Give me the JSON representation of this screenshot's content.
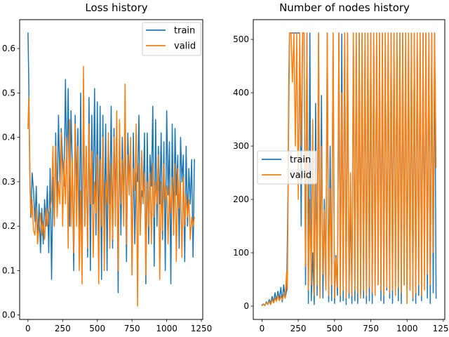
{
  "chart_data": [
    {
      "type": "line",
      "title": "Loss history",
      "xlabel": "",
      "ylabel": "",
      "xlim": [
        -60,
        1260
      ],
      "ylim": [
        -0.01,
        0.665
      ],
      "xticks": [
        0,
        250,
        500,
        750,
        1000,
        1250
      ],
      "yticks": [
        0.0,
        0.1,
        0.2,
        0.3,
        0.4,
        0.5,
        0.6
      ],
      "grid": false,
      "legend_position": "upper right",
      "series": [
        {
          "name": "train",
          "color": "#1f77b4",
          "x": [
            0,
            5,
            10,
            15,
            20,
            25,
            30,
            40,
            50,
            60,
            70,
            80,
            90,
            100,
            110,
            120,
            130,
            140,
            150,
            160,
            170,
            180,
            190,
            200,
            210,
            220,
            230,
            240,
            250,
            260,
            270,
            280,
            290,
            300,
            310,
            320,
            330,
            340,
            350,
            360,
            370,
            380,
            390,
            400,
            410,
            420,
            430,
            440,
            450,
            460,
            470,
            480,
            490,
            500,
            510,
            520,
            530,
            540,
            550,
            560,
            570,
            580,
            590,
            600,
            610,
            620,
            630,
            640,
            650,
            660,
            670,
            680,
            690,
            700,
            710,
            720,
            730,
            740,
            750,
            760,
            770,
            780,
            790,
            800,
            810,
            820,
            830,
            840,
            850,
            860,
            870,
            880,
            890,
            900,
            910,
            920,
            930,
            940,
            950,
            960,
            970,
            980,
            990,
            1000,
            1010,
            1020,
            1030,
            1040,
            1050,
            1060,
            1070,
            1080,
            1090,
            1100,
            1110,
            1120,
            1130,
            1140,
            1150,
            1160,
            1170,
            1180,
            1190,
            1200
          ],
          "y": [
            0.635,
            0.54,
            0.42,
            0.3,
            0.22,
            0.26,
            0.32,
            0.28,
            0.21,
            0.29,
            0.16,
            0.25,
            0.14,
            0.24,
            0.16,
            0.26,
            0.2,
            0.29,
            0.14,
            0.33,
            0.08,
            0.31,
            0.2,
            0.41,
            0.25,
            0.45,
            0.3,
            0.42,
            0.35,
            0.29,
            0.53,
            0.32,
            0.51,
            0.2,
            0.46,
            0.33,
            0.1,
            0.45,
            0.28,
            0.42,
            0.17,
            0.5,
            0.12,
            0.47,
            0.2,
            0.38,
            0.13,
            0.49,
            0.1,
            0.45,
            0.25,
            0.51,
            0.18,
            0.48,
            0.14,
            0.47,
            0.08,
            0.45,
            0.18,
            0.43,
            0.1,
            0.38,
            0.25,
            0.47,
            0.15,
            0.42,
            0.26,
            0.42,
            0.05,
            0.43,
            0.18,
            0.4,
            0.25,
            0.42,
            0.12,
            0.41,
            0.3,
            0.38,
            0.09,
            0.41,
            0.16,
            0.32,
            0.3,
            0.45,
            0.2,
            0.28,
            0.26,
            0.41,
            0.07,
            0.41,
            0.16,
            0.36,
            0.29,
            0.47,
            0.11,
            0.44,
            0.2,
            0.38,
            0.25,
            0.41,
            0.17,
            0.39,
            0.1,
            0.46,
            0.27,
            0.39,
            0.07,
            0.43,
            0.18,
            0.42,
            0.27,
            0.36,
            0.15,
            0.4,
            0.3,
            0.36,
            0.12,
            0.38,
            0.2,
            0.33,
            0.25,
            0.35,
            0.13,
            0.35
          ]
        },
        {
          "name": "valid",
          "color": "#ff7f0e",
          "x": [
            0,
            5,
            10,
            15,
            20,
            25,
            30,
            40,
            50,
            60,
            70,
            80,
            90,
            100,
            110,
            120,
            130,
            140,
            150,
            160,
            170,
            180,
            190,
            200,
            210,
            220,
            230,
            240,
            250,
            260,
            270,
            280,
            290,
            300,
            310,
            320,
            330,
            340,
            350,
            360,
            370,
            380,
            390,
            400,
            410,
            420,
            430,
            440,
            450,
            460,
            470,
            480,
            490,
            500,
            510,
            520,
            530,
            540,
            550,
            560,
            570,
            580,
            590,
            600,
            610,
            620,
            630,
            640,
            650,
            660,
            670,
            680,
            690,
            700,
            710,
            720,
            730,
            740,
            750,
            760,
            770,
            780,
            790,
            800,
            810,
            820,
            830,
            840,
            850,
            860,
            870,
            880,
            890,
            900,
            910,
            920,
            930,
            940,
            950,
            960,
            970,
            980,
            990,
            1000,
            1010,
            1020,
            1030,
            1040,
            1050,
            1060,
            1070,
            1080,
            1090,
            1100,
            1110,
            1120,
            1130,
            1140,
            1150,
            1160,
            1170,
            1180,
            1190,
            1200
          ],
          "y": [
            0.42,
            0.49,
            0.4,
            0.28,
            0.24,
            0.22,
            0.26,
            0.19,
            0.18,
            0.24,
            0.16,
            0.2,
            0.23,
            0.18,
            0.21,
            0.17,
            0.24,
            0.2,
            0.23,
            0.24,
            0.26,
            0.38,
            0.2,
            0.38,
            0.22,
            0.3,
            0.25,
            0.41,
            0.2,
            0.35,
            0.25,
            0.4,
            0.15,
            0.44,
            0.2,
            0.35,
            0.14,
            0.43,
            0.2,
            0.38,
            0.1,
            0.28,
            0.07,
            0.56,
            0.2,
            0.38,
            0.15,
            0.43,
            0.25,
            0.37,
            0.13,
            0.3,
            0.23,
            0.36,
            0.07,
            0.35,
            0.2,
            0.4,
            0.1,
            0.3,
            0.25,
            0.41,
            0.15,
            0.34,
            0.17,
            0.4,
            0.2,
            0.46,
            0.1,
            0.44,
            0.25,
            0.35,
            0.2,
            0.52,
            0.16,
            0.36,
            0.27,
            0.4,
            0.09,
            0.33,
            0.28,
            0.43,
            0.02,
            0.34,
            0.18,
            0.37,
            0.25,
            0.32,
            0.09,
            0.3,
            0.2,
            0.32,
            0.16,
            0.34,
            0.22,
            0.3,
            0.25,
            0.36,
            0.08,
            0.3,
            0.19,
            0.34,
            0.26,
            0.29,
            0.16,
            0.29,
            0.23,
            0.31,
            0.18,
            0.34,
            0.12,
            0.33,
            0.24,
            0.3,
            0.13,
            0.31,
            0.2,
            0.27,
            0.22,
            0.26,
            0.17,
            0.22,
            0.2,
            0.22
          ]
        }
      ]
    },
    {
      "type": "line",
      "title": "Number of nodes history",
      "xlabel": "",
      "ylabel": "",
      "xlim": [
        -60,
        1260
      ],
      "ylim": [
        -25,
        537
      ],
      "xticks": [
        0,
        250,
        500,
        750,
        1000,
        1250
      ],
      "yticks": [
        0,
        100,
        200,
        300,
        400,
        500
      ],
      "grid": false,
      "legend_position": "center left",
      "series": [
        {
          "name": "train",
          "color": "#1f77b4",
          "x": [
            0,
            10,
            20,
            30,
            40,
            50,
            60,
            70,
            80,
            90,
            100,
            110,
            120,
            130,
            140,
            150,
            160,
            170,
            180,
            185,
            190,
            200,
            210,
            220,
            230,
            240,
            250,
            260,
            270,
            280,
            290,
            300,
            310,
            320,
            330,
            340,
            350,
            360,
            370,
            380,
            390,
            400,
            410,
            420,
            430,
            440,
            450,
            460,
            470,
            480,
            490,
            500,
            510,
            520,
            530,
            540,
            550,
            560,
            570,
            580,
            590,
            600,
            610,
            620,
            630,
            640,
            650,
            660,
            670,
            680,
            690,
            700,
            710,
            720,
            730,
            740,
            750,
            760,
            770,
            780,
            790,
            800,
            810,
            820,
            830,
            840,
            850,
            860,
            870,
            880,
            890,
            900,
            910,
            920,
            930,
            940,
            950,
            960,
            970,
            980,
            990,
            1000,
            1010,
            1020,
            1030,
            1040,
            1050,
            1060,
            1070,
            1080,
            1090,
            1100,
            1110,
            1120,
            1130,
            1140,
            1150,
            1160,
            1170,
            1180,
            1190,
            1200
          ],
          "y": [
            2,
            4,
            1,
            8,
            3,
            12,
            5,
            18,
            7,
            25,
            10,
            28,
            12,
            35,
            8,
            40,
            15,
            30,
            220,
            430,
            512,
            512,
            512,
            512,
            512,
            512,
            512,
            512,
            150,
            512,
            512,
            40,
            512,
            5,
            512,
            10,
            100,
            3,
            380,
            20,
            512,
            30,
            395,
            15,
            200,
            40,
            512,
            8,
            300,
            10,
            512,
            5,
            95,
            20,
            512,
            8,
            510,
            10,
            512,
            3,
            512,
            15,
            200,
            5,
            512,
            10,
            512,
            5,
            512,
            20,
            512,
            15,
            512,
            5,
            512,
            10,
            512,
            5,
            512,
            20,
            512,
            40,
            512,
            10,
            512,
            5,
            512,
            30,
            512,
            15,
            512,
            5,
            512,
            20,
            512,
            10,
            512,
            5,
            512,
            40,
            512,
            5,
            512,
            30,
            512,
            10,
            512,
            5,
            512,
            20,
            512,
            10,
            512,
            60,
            512,
            15,
            512,
            5,
            512,
            25,
            512,
            15
          ]
        },
        {
          "name": "valid",
          "color": "#ff7f0e",
          "x": [
            0,
            10,
            20,
            30,
            40,
            50,
            60,
            70,
            80,
            90,
            100,
            110,
            120,
            130,
            140,
            150,
            160,
            170,
            175,
            180,
            190,
            200,
            210,
            220,
            230,
            240,
            250,
            260,
            270,
            280,
            290,
            300,
            310,
            320,
            330,
            340,
            350,
            360,
            370,
            380,
            390,
            400,
            410,
            420,
            430,
            440,
            450,
            460,
            470,
            480,
            490,
            500,
            510,
            520,
            530,
            540,
            550,
            560,
            570,
            580,
            590,
            600,
            610,
            620,
            630,
            640,
            650,
            660,
            670,
            680,
            690,
            700,
            710,
            720,
            730,
            740,
            750,
            760,
            770,
            780,
            790,
            800,
            810,
            820,
            830,
            840,
            850,
            860,
            870,
            880,
            890,
            900,
            910,
            920,
            930,
            940,
            950,
            960,
            970,
            980,
            990,
            1000,
            1010,
            1020,
            1030,
            1040,
            1050,
            1060,
            1070,
            1080,
            1090,
            1100,
            1110,
            1120,
            1130,
            1140,
            1150,
            1160,
            1170,
            1180,
            1190,
            1200
          ],
          "y": [
            1,
            3,
            2,
            6,
            4,
            8,
            3,
            12,
            6,
            15,
            9,
            20,
            10,
            18,
            12,
            22,
            15,
            65,
            30,
            200,
            512,
            512,
            420,
            512,
            300,
            512,
            200,
            512,
            300,
            512,
            512,
            75,
            512,
            30,
            200,
            40,
            350,
            20,
            250,
            40,
            512,
            15,
            300,
            60,
            180,
            30,
            512,
            20,
            220,
            40,
            512,
            15,
            90,
            35,
            512,
            20,
            400,
            30,
            512,
            15,
            512,
            25,
            250,
            20,
            512,
            30,
            512,
            25,
            512,
            15,
            512,
            30,
            512,
            20,
            512,
            35,
            512,
            25,
            512,
            20,
            512,
            40,
            512,
            30,
            512,
            20,
            512,
            35,
            512,
            25,
            512,
            30,
            512,
            20,
            512,
            35,
            512,
            25,
            512,
            40,
            512,
            5,
            512,
            30,
            512,
            15,
            512,
            25,
            512,
            40,
            512,
            20,
            512,
            30,
            512,
            60,
            512,
            40,
            512,
            100,
            512,
            260
          ]
        }
      ]
    }
  ]
}
